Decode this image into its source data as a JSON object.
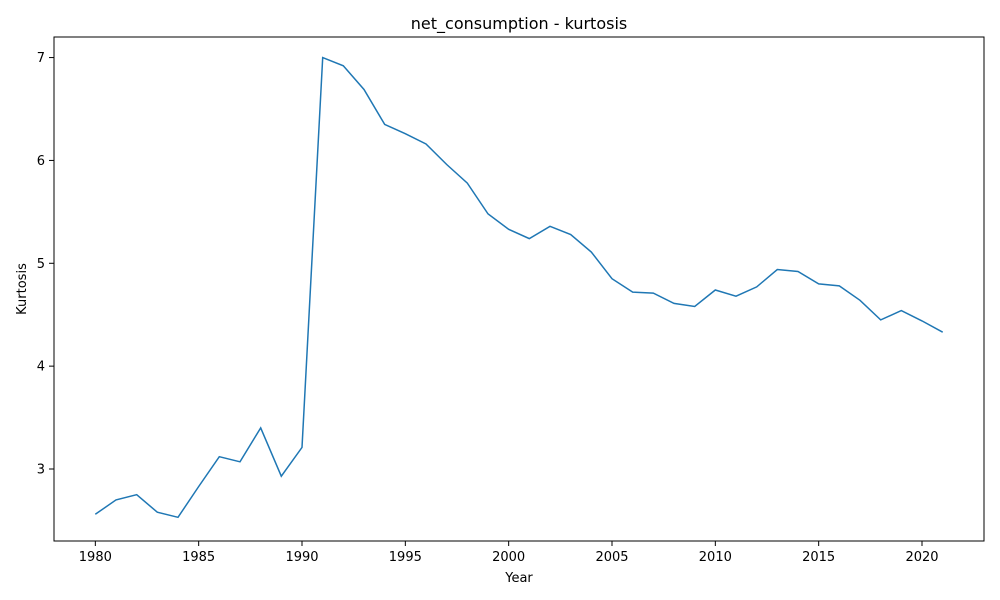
{
  "chart_data": {
    "type": "line",
    "title": "net_consumption - kurtosis",
    "xlabel": "Year",
    "ylabel": "Kurtosis",
    "xlim": [
      1978,
      2023
    ],
    "ylim": [
      2.3,
      7.2
    ],
    "xticks": [
      1980,
      1985,
      1990,
      1995,
      2000,
      2005,
      2010,
      2015,
      2020
    ],
    "yticks": [
      3,
      4,
      5,
      6,
      7
    ],
    "grid": false,
    "line_color": "#1f77b4",
    "series": [
      {
        "x": [
          1980,
          1981,
          1982,
          1983,
          1984,
          1985,
          1986,
          1987,
          1988,
          1989,
          1990,
          1991,
          1992,
          1993,
          1994,
          1995,
          1996,
          1997,
          1998,
          1999,
          2000,
          2001,
          2002,
          2003,
          2004,
          2005,
          2006,
          2007,
          2008,
          2009,
          2010,
          2011,
          2012,
          2013,
          2014,
          2015,
          2016,
          2017,
          2018,
          2019,
          2020,
          2021
        ],
        "values": [
          2.56,
          2.7,
          2.75,
          2.58,
          2.53,
          2.83,
          3.12,
          3.07,
          3.4,
          2.93,
          3.21,
          7.0,
          6.92,
          6.69,
          6.35,
          6.26,
          6.16,
          5.96,
          5.78,
          5.48,
          5.33,
          5.24,
          5.36,
          5.28,
          5.11,
          4.85,
          4.72,
          4.71,
          4.61,
          4.58,
          4.74,
          4.68,
          4.77,
          4.94,
          4.92,
          4.8,
          4.78,
          4.64,
          4.45,
          4.54,
          4.44,
          4.33
        ]
      }
    ]
  }
}
